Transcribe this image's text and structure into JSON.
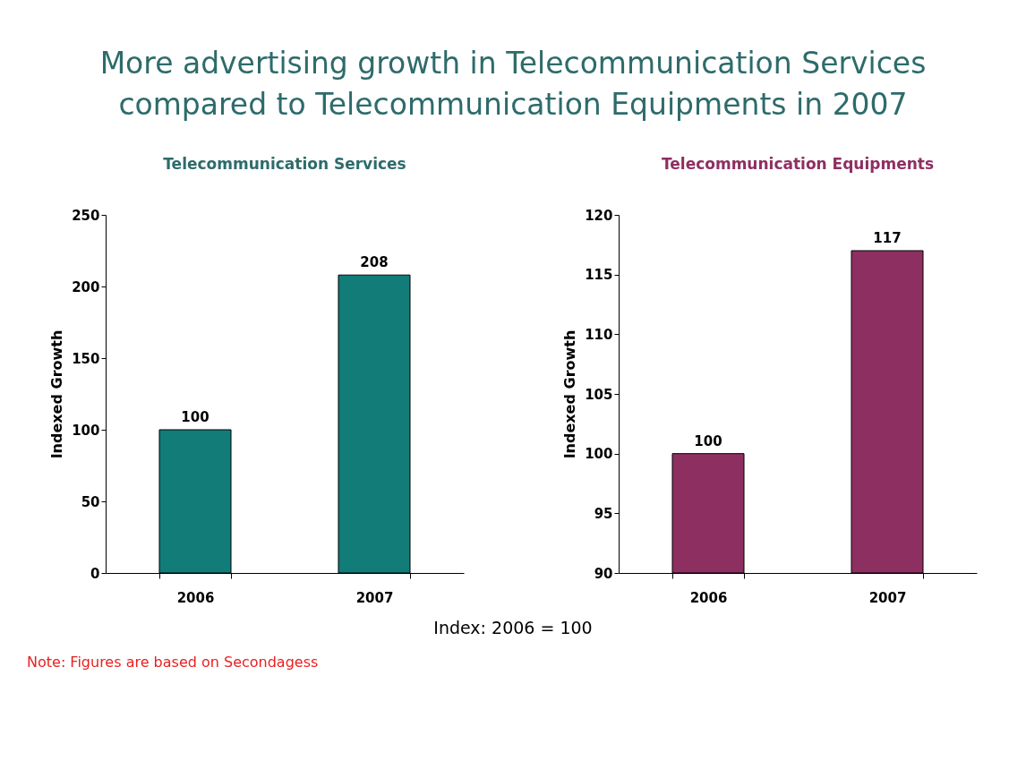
{
  "chart_data": [
    {
      "type": "bar",
      "title": "More advertising growth in Telecommunication Services compared to Telecommunication Equipments in 2007",
      "subtitle": "Telecommunication Services",
      "ylabel": "Indexed Growth",
      "categories": [
        "2006",
        "2007"
      ],
      "values": [
        100,
        208
      ],
      "color": "#117c78",
      "ylim": [
        0,
        250
      ],
      "yticks": [
        0,
        50,
        100,
        150,
        200,
        250
      ],
      "grid": false,
      "data_labels": true,
      "annotations": [
        "Index: 2006 = 100",
        "Note: Figures are based on Secondagess"
      ]
    },
    {
      "type": "bar",
      "title": "Telecommunication Equipments",
      "ylabel": "Indexed Growth",
      "categories": [
        "2006",
        "2007"
      ],
      "values": [
        100,
        117
      ],
      "color": "#8e2f62",
      "ylim": [
        90,
        120
      ],
      "yticks": [
        90,
        95,
        100,
        105,
        110,
        115,
        120
      ],
      "grid": false,
      "data_labels": true
    }
  ]
}
